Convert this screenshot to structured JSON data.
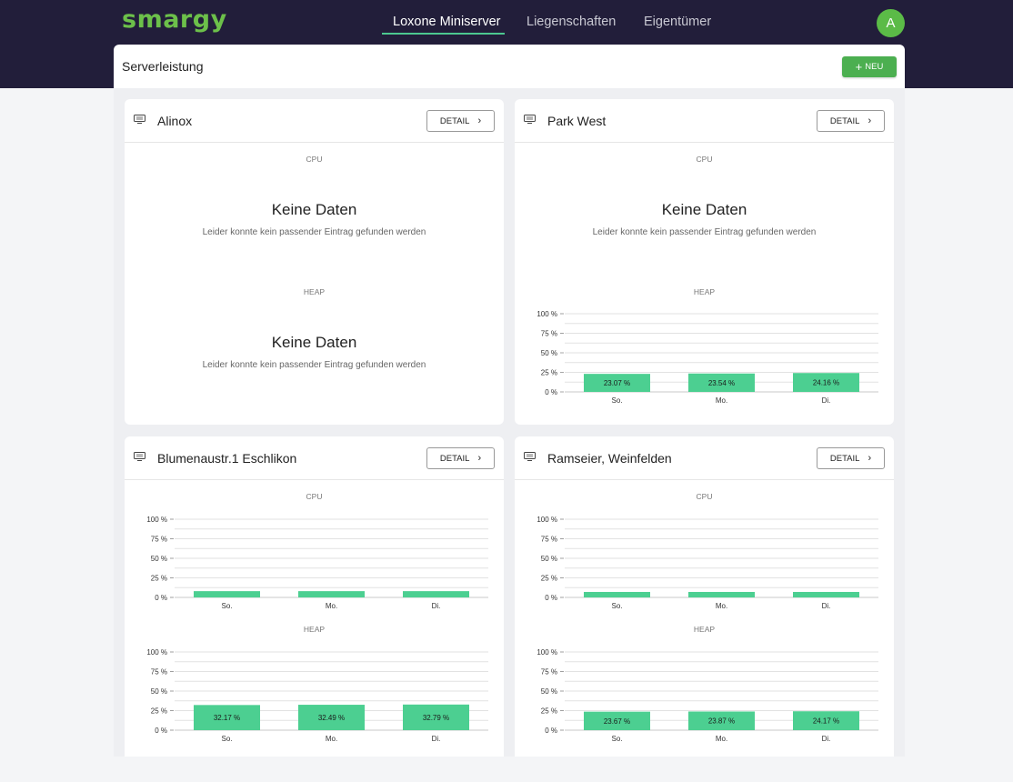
{
  "header": {
    "logo_text": "smargy",
    "brand_color": "#6cc04a",
    "nav": [
      {
        "label": "Loxone Miniserver",
        "active": true
      },
      {
        "label": "Liegenschaften",
        "active": false
      },
      {
        "label": "Eigentümer",
        "active": false
      }
    ],
    "avatar_initial": "A"
  },
  "page": {
    "title": "Serverleistung",
    "new_button_label": "NEU",
    "new_button_icon": "plus-icon"
  },
  "common": {
    "detail_label": "DETAIL",
    "cpu_label": "CPU",
    "heap_label": "HEAP",
    "no_data_title": "Keine Daten",
    "no_data_sub": "Leider konnte kein passender Eintrag gefunden werden",
    "card_icon": "monitor-icon",
    "bar_color": "#4ccf91"
  },
  "servers": [
    {
      "name": "Alinox"
    },
    {
      "name": "Park West"
    },
    {
      "name": "Blumenaustr.1 Eschlikon"
    },
    {
      "name": "Ramseier, Weinfelden"
    }
  ],
  "chart_data": [
    {
      "type": "bar",
      "server": "Park West",
      "metric": "HEAP",
      "categories": [
        "So.",
        "Mo.",
        "Di."
      ],
      "values": [
        23.07,
        23.54,
        24.16
      ],
      "value_labels": [
        "23.07 %",
        "23.54 %",
        "24.16 %"
      ],
      "y_ticks": [
        "100 %",
        "75 %",
        "50 %",
        "25 %",
        "0 %"
      ],
      "ylim": [
        0,
        100
      ]
    },
    {
      "type": "bar",
      "server": "Blumenaustr.1 Eschlikon",
      "metric": "CPU",
      "categories": [
        "So.",
        "Mo.",
        "Di."
      ],
      "values": [
        8,
        8,
        8
      ],
      "value_labels": [],
      "y_ticks": [
        "100 %",
        "75 %",
        "50 %",
        "25 %",
        "0 %"
      ],
      "ylim": [
        0,
        100
      ]
    },
    {
      "type": "bar",
      "server": "Blumenaustr.1 Eschlikon",
      "metric": "HEAP",
      "categories": [
        "So.",
        "Mo.",
        "Di."
      ],
      "values": [
        32.17,
        32.49,
        32.79
      ],
      "value_labels": [
        "32.17 %",
        "32.49 %",
        "32.79 %"
      ],
      "y_ticks": [
        "100 %",
        "75 %",
        "50 %",
        "25 %",
        "0 %"
      ],
      "ylim": [
        0,
        100
      ]
    },
    {
      "type": "bar",
      "server": "Ramseier, Weinfelden",
      "metric": "CPU",
      "categories": [
        "So.",
        "Mo.",
        "Di."
      ],
      "values": [
        7,
        7,
        7
      ],
      "value_labels": [],
      "y_ticks": [
        "100 %",
        "75 %",
        "50 %",
        "25 %",
        "0 %"
      ],
      "ylim": [
        0,
        100
      ]
    },
    {
      "type": "bar",
      "server": "Ramseier, Weinfelden",
      "metric": "HEAP",
      "categories": [
        "So.",
        "Mo.",
        "Di."
      ],
      "values": [
        23.67,
        23.87,
        24.17
      ],
      "value_labels": [
        "23.67 %",
        "23.87 %",
        "24.17 %"
      ],
      "y_ticks": [
        "100 %",
        "75 %",
        "50 %",
        "25 %",
        "0 %"
      ],
      "ylim": [
        0,
        100
      ]
    }
  ]
}
